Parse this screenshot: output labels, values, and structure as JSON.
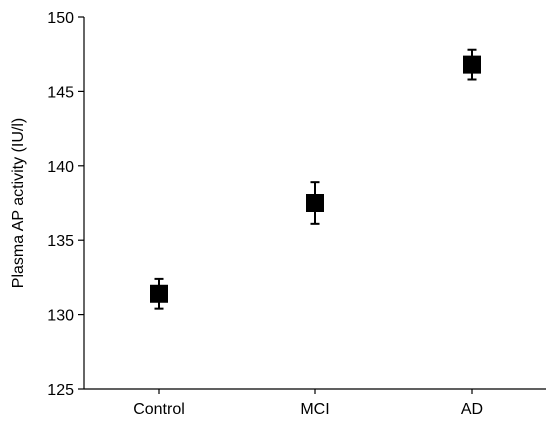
{
  "chart_data": {
    "type": "scatter",
    "title": "",
    "xlabel": "",
    "ylabel": "Plasma AP activity (IU/l)",
    "categories": [
      "Control",
      "MCI",
      "AD"
    ],
    "series": [
      {
        "values": [
          131.4,
          137.5,
          146.8
        ],
        "error_low": [
          130.4,
          136.1,
          145.8
        ],
        "error_high": [
          132.4,
          138.9,
          147.8
        ],
        "marker": "square",
        "color": "#000000"
      }
    ],
    "ylim": [
      125,
      150
    ],
    "yticks": [
      125,
      130,
      135,
      140,
      145,
      150
    ],
    "grid": false,
    "legend": "none"
  }
}
